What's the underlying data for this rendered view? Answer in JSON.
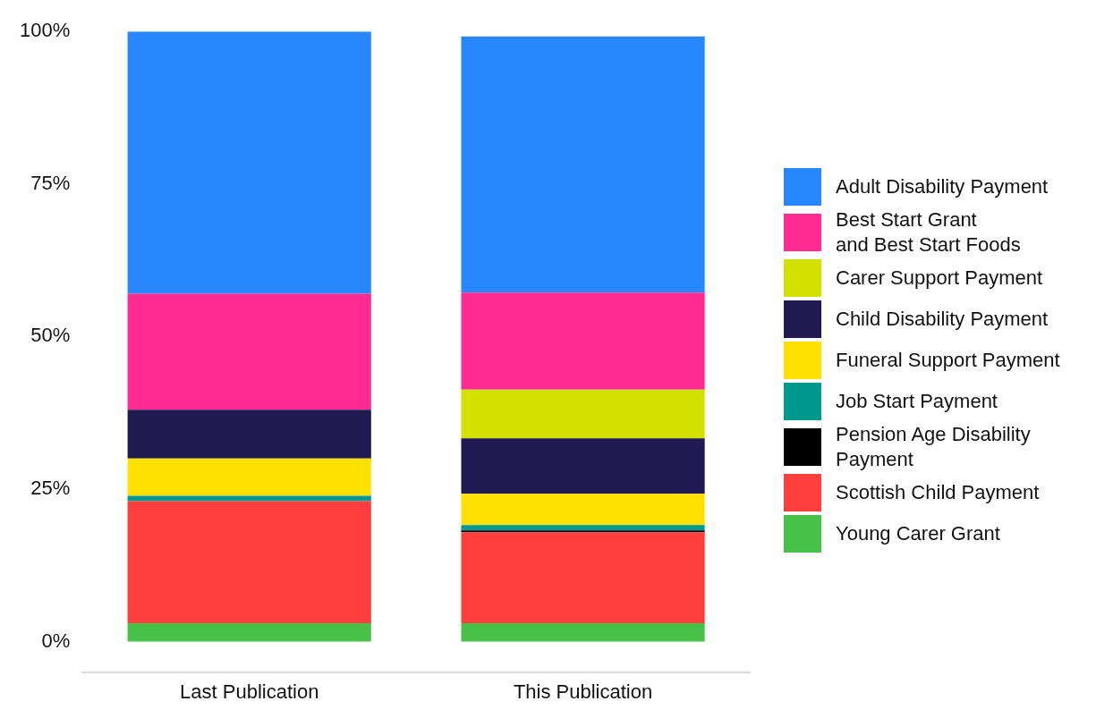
{
  "chart_data": {
    "type": "bar",
    "stacked": true,
    "categories": [
      "Last Publication",
      "This Publication"
    ],
    "series": [
      {
        "name": "Young Carer Grant",
        "color": "#48c148",
        "values": [
          3.0,
          3.0
        ]
      },
      {
        "name": "Scottish Child Payment",
        "color": "#ff3e3e",
        "values": [
          20.0,
          14.9
        ]
      },
      {
        "name": "Pension Age Disability\nPayment",
        "color": "#000000",
        "values": [
          null,
          0.3
        ]
      },
      {
        "name": "Job Start Payment",
        "color": "#009990",
        "values": [
          0.9,
          0.9
        ]
      },
      {
        "name": "Funeral Support Payment",
        "color": "#ffe000",
        "values": [
          6.1,
          5.1
        ]
      },
      {
        "name": "Child Disability Payment",
        "color": "#211a52",
        "values": [
          8.0,
          9.1
        ]
      },
      {
        "name": "Carer Support Payment",
        "color": "#d3e000",
        "values": [
          null,
          8.0
        ]
      },
      {
        "name": "Best Start Grant\nand Best Start Foods",
        "color": "#ff2a92",
        "values": [
          19.0,
          15.9
        ]
      },
      {
        "name": "Adult Disability Payment",
        "color": "#2886ff",
        "values": [
          43.0,
          42.0
        ]
      }
    ],
    "ylim": [
      -5,
      100
    ],
    "yticks": [
      {
        "value": 0,
        "label": "0%"
      },
      {
        "value": 25,
        "label": "25%"
      },
      {
        "value": 50,
        "label": "50%"
      },
      {
        "value": 75,
        "label": "75%"
      },
      {
        "value": 100,
        "label": "100%"
      }
    ],
    "grid": false,
    "legend": "right"
  }
}
